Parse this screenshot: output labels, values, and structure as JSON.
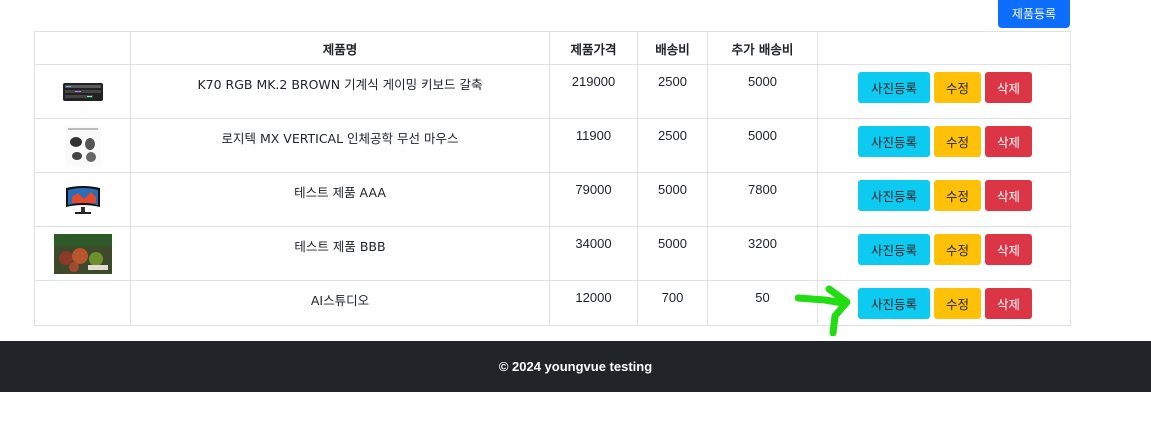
{
  "toolbar": {
    "register_label": "제품등록"
  },
  "table": {
    "headers": [
      "",
      "제품명",
      "제품가격",
      "배송비",
      "추가 배송비",
      ""
    ],
    "rows": [
      {
        "name": "K70 RGB MK.2 BROWN 기계식 게이밍 키보드 갈축",
        "price": "219000",
        "shipping": "2500",
        "extra_shipping": "5000",
        "thumb": "keyboard-thumbnail"
      },
      {
        "name": "로지텍 MX VERTICAL 인체공학 무선 마우스",
        "price": "11900",
        "shipping": "2500",
        "extra_shipping": "5000",
        "thumb": "mouse-thumbnail"
      },
      {
        "name": "테스트 제품 AAA",
        "price": "79000",
        "shipping": "5000",
        "extra_shipping": "7800",
        "thumb": "monitor-thumbnail"
      },
      {
        "name": "테스트 제품 BBB",
        "price": "34000",
        "shipping": "5000",
        "extra_shipping": "3200",
        "thumb": "fruit-thumbnail"
      },
      {
        "name": "AI스튜디오",
        "price": "12000",
        "shipping": "700",
        "extra_shipping": "50",
        "thumb": ""
      }
    ],
    "actions": {
      "photo_label": "사진등록",
      "edit_label": "수정",
      "delete_label": "삭제"
    }
  },
  "footer": {
    "text": "© 2024 youngvue testing"
  },
  "colors": {
    "primary": "#0d6efd",
    "info": "#0dcaf0",
    "warning": "#ffc107",
    "danger": "#dc3545",
    "footer_bg": "#212529",
    "annotation_arrow": "#22dd11"
  }
}
